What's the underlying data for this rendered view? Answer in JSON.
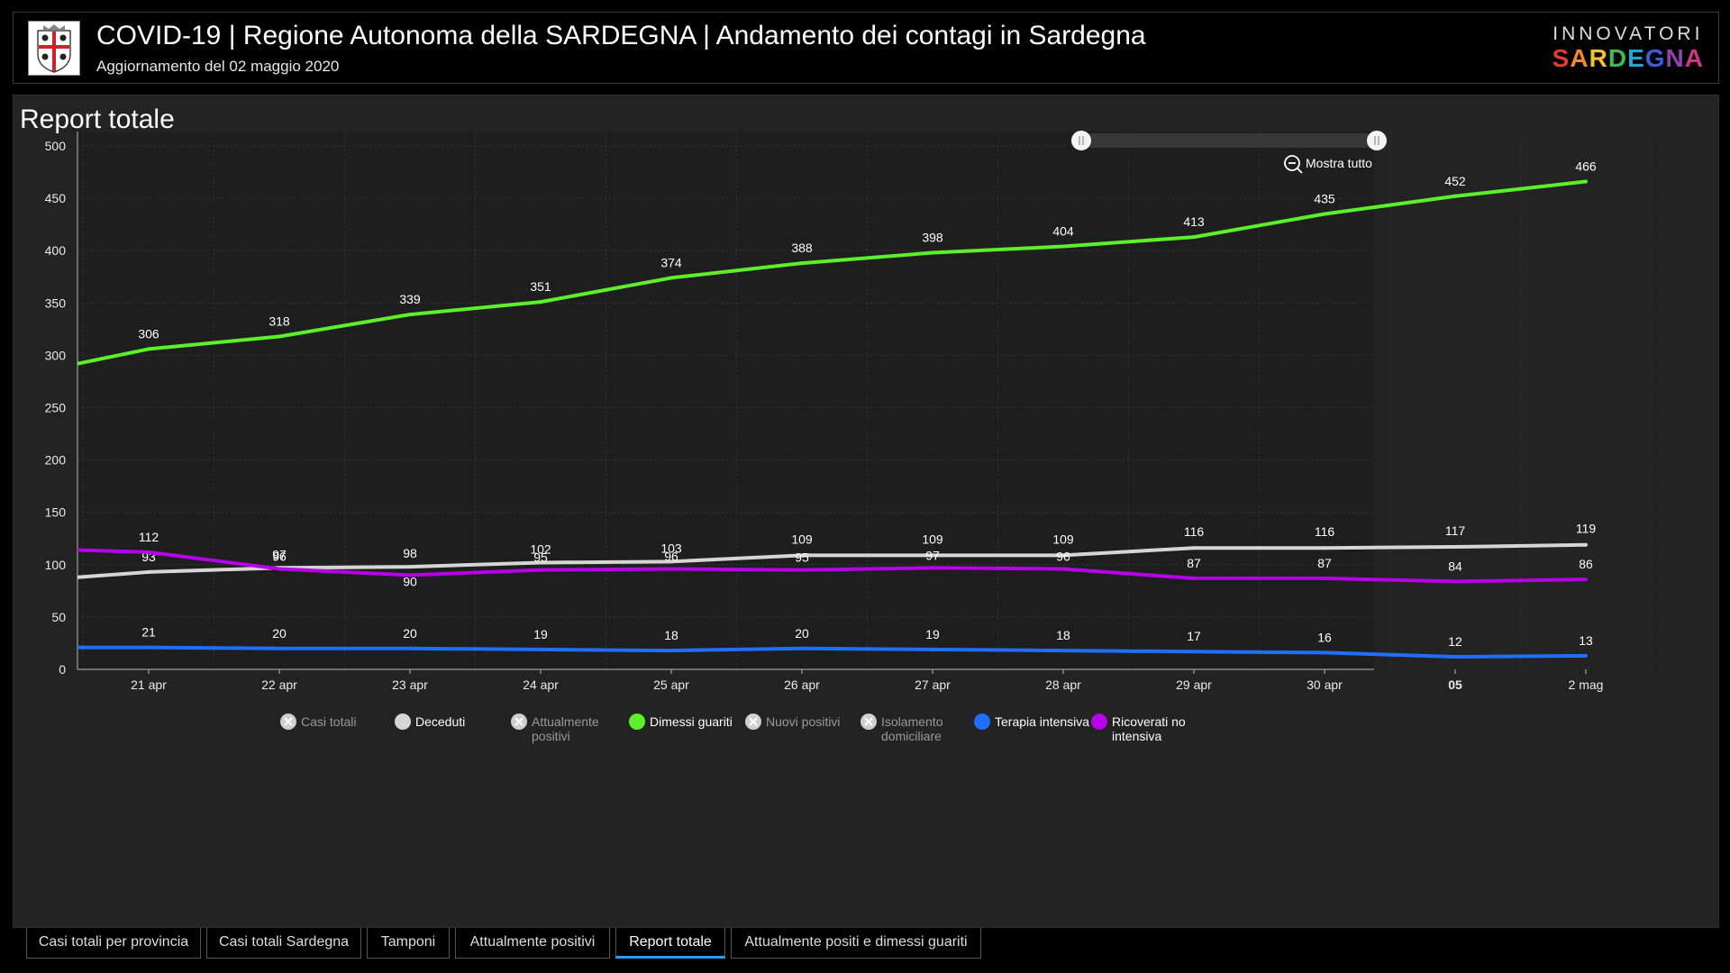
{
  "header": {
    "title": "COVID-19 | Regione Autonoma della SARDEGNA | Andamento dei contagi in Sardegna",
    "subtitle": "Aggiornamento del 02 maggio 2020",
    "brand_top": "INNOVATORI",
    "brand_bottom_letters": [
      "S",
      "A",
      "R",
      "D",
      "E",
      "G",
      "N",
      "A"
    ],
    "brand_colors": [
      "#e03b2f",
      "#f08a24",
      "#f2c12e",
      "#3cba54",
      "#1fa3d8",
      "#3a5fd9",
      "#8e44ad",
      "#d63384"
    ]
  },
  "panel": {
    "title": "Report totale",
    "zoom_label": "Mostra tutto"
  },
  "chart_data": {
    "type": "line",
    "title": "Report totale",
    "ylim": [
      0,
      500
    ],
    "y_ticks": [
      0,
      50,
      100,
      150,
      200,
      250,
      300,
      350,
      400,
      450,
      500
    ],
    "x_ticks": [
      "21 apr",
      "22 apr",
      "23 apr",
      "24 apr",
      "25 apr",
      "26 apr",
      "27 apr",
      "28 apr",
      "29 apr",
      "30 apr",
      "05",
      "2 mag"
    ],
    "x_tick_bold": [
      false,
      false,
      false,
      false,
      false,
      false,
      false,
      false,
      false,
      false,
      true,
      false
    ],
    "x_start_value_index": -0.8,
    "series": [
      {
        "name": "Dimessi guariti",
        "color": "#5cf02a",
        "start": 292,
        "values": [
          306,
          318,
          339,
          351,
          374,
          388,
          398,
          404,
          413,
          435,
          452,
          466
        ]
      },
      {
        "name": "Deceduti",
        "color": "#d6d6d6",
        "start": 88,
        "values": [
          93,
          97,
          98,
          102,
          103,
          109,
          109,
          109,
          116,
          116,
          117,
          119
        ]
      },
      {
        "name": "Ricoverati no intensiva",
        "color": "#b500e8",
        "start": 114,
        "values": [
          112,
          96,
          90,
          95,
          96,
          95,
          97,
          96,
          87,
          87,
          84,
          86
        ]
      },
      {
        "name": "Terapia intensiva",
        "color": "#1f6fff",
        "start": 21,
        "values": [
          21,
          20,
          20,
          19,
          18,
          20,
          19,
          18,
          17,
          16,
          12,
          13
        ]
      }
    ],
    "label_offsets": {
      "Dimessi guariti": [
        -12,
        -12,
        -12,
        -12,
        -12,
        -12,
        -12,
        -12,
        -12,
        -12,
        -12,
        -12
      ],
      "Deceduti": [
        -12,
        -10,
        -10,
        -10,
        -10,
        -13,
        -13,
        -13,
        -13,
        -13,
        -13,
        -13
      ],
      "Ricoverati no intensiva": [
        -12,
        -9,
        12,
        -9,
        -9,
        -9,
        -9,
        -9,
        -12,
        -12,
        -12,
        -12
      ],
      "Terapia intensiva": [
        -12,
        -12,
        -12,
        -12,
        -12,
        -12,
        -12,
        -12,
        -12,
        -12,
        -12,
        -12
      ]
    },
    "legend": [
      {
        "name": "Casi totali",
        "active": false,
        "color": "#cfcfcf"
      },
      {
        "name": "Deceduti",
        "active": true,
        "color": "#d6d6d6"
      },
      {
        "name": "Attualmente positivi",
        "active": false,
        "color": "#cfcfcf"
      },
      {
        "name": "Dimessi guariti",
        "active": true,
        "color": "#5cf02a"
      },
      {
        "name": "Nuovi positivi",
        "active": false,
        "color": "#cfcfcf"
      },
      {
        "name": "Isolamento domiciliare",
        "active": false,
        "color": "#cfcfcf"
      },
      {
        "name": "Terapia intensiva",
        "active": true,
        "color": "#1f6fff"
      },
      {
        "name": "Ricoverati no intensiva",
        "active": true,
        "color": "#b500e8"
      }
    ]
  },
  "tabs": [
    {
      "label": "Casi totali per provincia",
      "active": false
    },
    {
      "label": "Casi totali Sardegna",
      "active": false
    },
    {
      "label": "Tamponi",
      "active": false
    },
    {
      "label": "Attualmente positivi",
      "active": false
    },
    {
      "label": "Report totale",
      "active": true
    },
    {
      "label": "Attualmente positi e dimessi guariti",
      "active": false
    }
  ]
}
